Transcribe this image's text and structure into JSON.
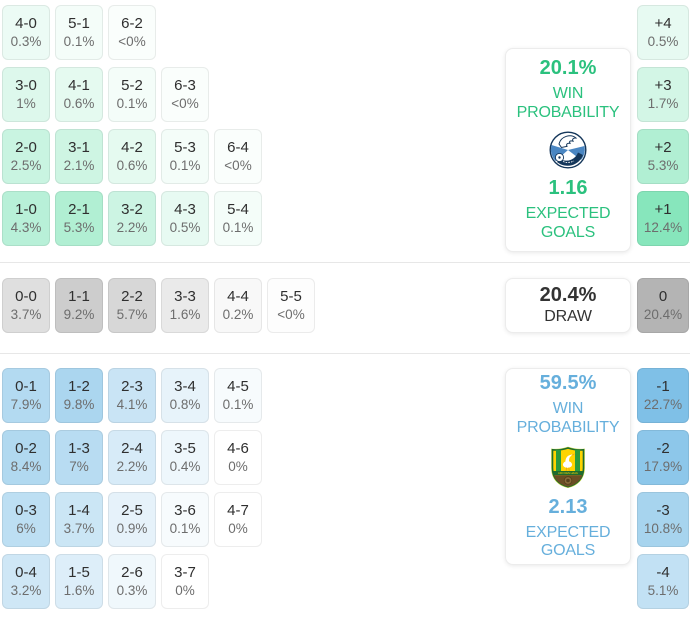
{
  "colors": {
    "home_accent": "#2bc17e",
    "away_accent": "#66afdc",
    "draw_accent": "#333333"
  },
  "panels": {
    "home": {
      "probability": "20.1%",
      "probability_label": "WIN PROBABILITY",
      "expected_goals": "1.16",
      "expected_goals_label": "EXPECTED GOALS",
      "logo": "home-team-crest-blue-white-circle"
    },
    "draw": {
      "probability": "20.4%",
      "label": "DRAW"
    },
    "away": {
      "probability": "59.5%",
      "probability_label": "WIN PROBABILITY",
      "expected_goals": "2.13",
      "expected_goals_label": "EXPECTED GOALS",
      "logo": "away-team-crest-green-yellow-shield-stork"
    }
  },
  "chart_data": {
    "type": "heatmap",
    "title": "Correct score probability matrix with win/draw probabilities, goal differences and expected goals",
    "legend_position": "right",
    "summary": {
      "home_win_probability_pct": 20.1,
      "home_expected_goals": 1.16,
      "draw_probability_pct": 20.4,
      "away_win_probability_pct": 59.5,
      "away_expected_goals": 2.13
    },
    "grids": {
      "home": {
        "base": "#87e6bc",
        "ref": 12.4,
        "rows": [
          [
            {
              "label": "4-0",
              "pct": "0.3%",
              "v": 0.3
            },
            {
              "label": "5-1",
              "pct": "0.1%",
              "v": 0.1
            },
            {
              "label": "6-2",
              "pct": "<0%",
              "v": 0.02
            }
          ],
          [
            {
              "label": "3-0",
              "pct": "1%",
              "v": 1
            },
            {
              "label": "4-1",
              "pct": "0.6%",
              "v": 0.6
            },
            {
              "label": "5-2",
              "pct": "0.1%",
              "v": 0.1
            },
            {
              "label": "6-3",
              "pct": "<0%",
              "v": 0.02
            }
          ],
          [
            {
              "label": "2-0",
              "pct": "2.5%",
              "v": 2.5
            },
            {
              "label": "3-1",
              "pct": "2.1%",
              "v": 2.1
            },
            {
              "label": "4-2",
              "pct": "0.6%",
              "v": 0.6
            },
            {
              "label": "5-3",
              "pct": "0.1%",
              "v": 0.1
            },
            {
              "label": "6-4",
              "pct": "<0%",
              "v": 0.02
            }
          ],
          [
            {
              "label": "1-0",
              "pct": "4.3%",
              "v": 4.3
            },
            {
              "label": "2-1",
              "pct": "5.3%",
              "v": 5.3
            },
            {
              "label": "3-2",
              "pct": "2.2%",
              "v": 2.2
            },
            {
              "label": "4-3",
              "pct": "0.5%",
              "v": 0.5
            },
            {
              "label": "5-4",
              "pct": "0.1%",
              "v": 0.1
            }
          ]
        ]
      },
      "home_diff": {
        "base": "#87e6bc",
        "ref": 12.4,
        "rows": [
          [
            {
              "label": "+4",
              "pct": "0.5%",
              "v": 0.5
            }
          ],
          [
            {
              "label": "+3",
              "pct": "1.7%",
              "v": 1.7
            }
          ],
          [
            {
              "label": "+2",
              "pct": "5.3%",
              "v": 5.3
            }
          ],
          [
            {
              "label": "+1",
              "pct": "12.4%",
              "v": 12.4
            }
          ]
        ]
      },
      "draw": {
        "base": "#b4b4b4",
        "ref": 20.4,
        "rows": [
          [
            {
              "label": "0-0",
              "pct": "3.7%",
              "v": 3.7
            },
            {
              "label": "1-1",
              "pct": "9.2%",
              "v": 9.2
            },
            {
              "label": "2-2",
              "pct": "5.7%",
              "v": 5.7
            },
            {
              "label": "3-3",
              "pct": "1.6%",
              "v": 1.6
            },
            {
              "label": "4-4",
              "pct": "0.2%",
              "v": 0.2
            },
            {
              "label": "5-5",
              "pct": "<0%",
              "v": 0.02
            }
          ]
        ]
      },
      "draw_diff": {
        "base": "#b4b4b4",
        "ref": 20.4,
        "rows": [
          [
            {
              "label": "0",
              "pct": "20.4%",
              "v": 20.4
            }
          ]
        ]
      },
      "away": {
        "base": "#7fc0e7",
        "ref": 22.7,
        "rows": [
          [
            {
              "label": "0-1",
              "pct": "7.9%",
              "v": 7.9
            },
            {
              "label": "1-2",
              "pct": "9.8%",
              "v": 9.8
            },
            {
              "label": "2-3",
              "pct": "4.1%",
              "v": 4.1
            },
            {
              "label": "3-4",
              "pct": "0.8%",
              "v": 0.8
            },
            {
              "label": "4-5",
              "pct": "0.1%",
              "v": 0.1
            }
          ],
          [
            {
              "label": "0-2",
              "pct": "8.4%",
              "v": 8.4
            },
            {
              "label": "1-3",
              "pct": "7%",
              "v": 7
            },
            {
              "label": "2-4",
              "pct": "2.2%",
              "v": 2.2
            },
            {
              "label": "3-5",
              "pct": "0.4%",
              "v": 0.4
            },
            {
              "label": "4-6",
              "pct": "0%",
              "v": 0
            }
          ],
          [
            {
              "label": "0-3",
              "pct": "6%",
              "v": 6
            },
            {
              "label": "1-4",
              "pct": "3.7%",
              "v": 3.7
            },
            {
              "label": "2-5",
              "pct": "0.9%",
              "v": 0.9
            },
            {
              "label": "3-6",
              "pct": "0.1%",
              "v": 0.1
            },
            {
              "label": "4-7",
              "pct": "0%",
              "v": 0
            }
          ],
          [
            {
              "label": "0-4",
              "pct": "3.2%",
              "v": 3.2
            },
            {
              "label": "1-5",
              "pct": "1.6%",
              "v": 1.6
            },
            {
              "label": "2-6",
              "pct": "0.3%",
              "v": 0.3
            },
            {
              "label": "3-7",
              "pct": "0%",
              "v": 0
            }
          ]
        ]
      },
      "away_diff": {
        "base": "#7fc0e7",
        "ref": 22.7,
        "rows": [
          [
            {
              "label": "-1",
              "pct": "22.7%",
              "v": 22.7
            }
          ],
          [
            {
              "label": "-2",
              "pct": "17.9%",
              "v": 17.9
            }
          ],
          [
            {
              "label": "-3",
              "pct": "10.8%",
              "v": 10.8
            }
          ],
          [
            {
              "label": "-4",
              "pct": "5.1%",
              "v": 5.1
            }
          ]
        ]
      }
    }
  }
}
